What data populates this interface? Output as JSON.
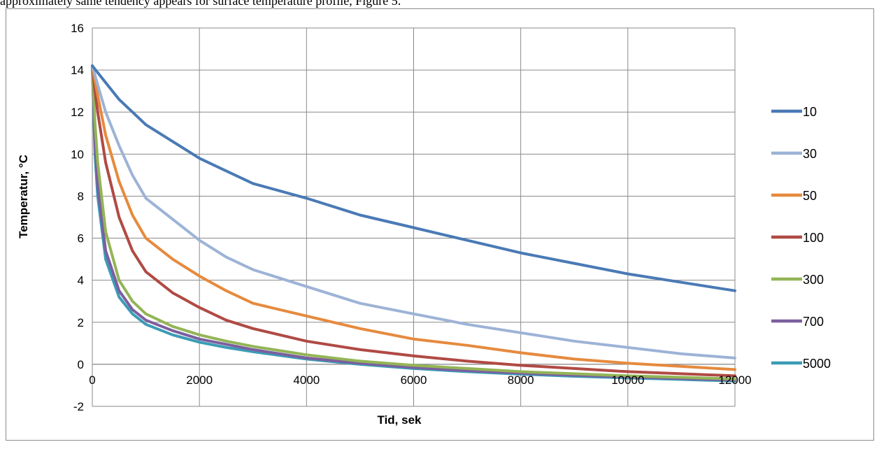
{
  "page": {
    "top_text": "approximately same tendency appears for surface temperature profile, Figure 5."
  },
  "chart_data": {
    "type": "line",
    "title": "",
    "xlabel": "Tid, sek",
    "ylabel": "Temperatur, °C",
    "xlim": [
      0,
      12000
    ],
    "ylim": [
      -2,
      16
    ],
    "xticks": [
      0,
      2000,
      4000,
      6000,
      8000,
      10000,
      12000
    ],
    "yticks": [
      -2,
      0,
      2,
      4,
      6,
      8,
      10,
      12,
      14,
      16
    ],
    "grid": true,
    "legend": "right",
    "series": [
      {
        "name": "10",
        "color": "#4a7ab5",
        "x": [
          0,
          250,
          500,
          750,
          1000,
          1500,
          2000,
          2500,
          3000,
          4000,
          5000,
          6000,
          7000,
          8000,
          9000,
          10000,
          11000,
          12000
        ],
        "y": [
          14.2,
          13.4,
          12.6,
          12.0,
          11.4,
          10.6,
          9.8,
          9.2,
          8.6,
          7.9,
          7.1,
          6.5,
          5.9,
          5.3,
          4.8,
          4.3,
          3.9,
          3.5
        ]
      },
      {
        "name": "30",
        "color": "#9db3d6",
        "x": [
          0,
          100,
          250,
          500,
          750,
          1000,
          1500,
          2000,
          2500,
          3000,
          4000,
          5000,
          6000,
          7000,
          8000,
          9000,
          10000,
          11000,
          12000
        ],
        "y": [
          14.2,
          13.3,
          12.0,
          10.4,
          9.0,
          7.9,
          6.9,
          5.9,
          5.1,
          4.5,
          3.7,
          2.9,
          2.4,
          1.9,
          1.5,
          1.1,
          0.8,
          0.5,
          0.3
        ]
      },
      {
        "name": "50",
        "color": "#e68a3e",
        "x": [
          0,
          100,
          250,
          500,
          750,
          1000,
          1500,
          2000,
          2500,
          3000,
          4000,
          5000,
          6000,
          7000,
          8000,
          9000,
          10000,
          11000,
          12000
        ],
        "y": [
          14.2,
          12.8,
          10.9,
          8.7,
          7.1,
          6.0,
          5.0,
          4.2,
          3.5,
          2.9,
          2.3,
          1.7,
          1.2,
          0.9,
          0.55,
          0.25,
          0.05,
          -0.1,
          -0.25
        ]
      },
      {
        "name": "100",
        "color": "#b04a44",
        "x": [
          0,
          50,
          100,
          250,
          500,
          750,
          1000,
          1500,
          2000,
          2500,
          3000,
          4000,
          5000,
          6000,
          7000,
          8000,
          9000,
          10000,
          11000,
          12000
        ],
        "y": [
          14.2,
          13.0,
          12.0,
          9.6,
          7.0,
          5.4,
          4.4,
          3.4,
          2.7,
          2.1,
          1.7,
          1.1,
          0.7,
          0.4,
          0.15,
          -0.05,
          -0.2,
          -0.35,
          -0.45,
          -0.55
        ]
      },
      {
        "name": "300",
        "color": "#93b556",
        "x": [
          0,
          50,
          100,
          250,
          500,
          750,
          1000,
          1500,
          2000,
          2500,
          3000,
          4000,
          5000,
          6000,
          7000,
          8000,
          9000,
          10000,
          11000,
          12000
        ],
        "y": [
          14.2,
          11.5,
          9.6,
          6.3,
          4.0,
          3.0,
          2.4,
          1.8,
          1.4,
          1.1,
          0.85,
          0.45,
          0.15,
          -0.05,
          -0.2,
          -0.35,
          -0.45,
          -0.55,
          -0.62,
          -0.7
        ]
      },
      {
        "name": "700",
        "color": "#7b5fa0",
        "x": [
          0,
          50,
          100,
          250,
          500,
          750,
          1000,
          1500,
          2000,
          2500,
          3000,
          4000,
          5000,
          6000,
          7000,
          8000,
          9000,
          10000,
          11000,
          12000
        ],
        "y": [
          14.2,
          10.5,
          8.5,
          5.4,
          3.5,
          2.6,
          2.1,
          1.6,
          1.2,
          0.95,
          0.7,
          0.3,
          0.05,
          -0.15,
          -0.3,
          -0.42,
          -0.52,
          -0.6,
          -0.68,
          -0.75
        ]
      },
      {
        "name": "5000",
        "color": "#3b9cb5",
        "x": [
          0,
          50,
          100,
          250,
          500,
          750,
          1000,
          1500,
          2000,
          2500,
          3000,
          4000,
          5000,
          6000,
          7000,
          8000,
          9000,
          10000,
          11000,
          12000
        ],
        "y": [
          14.2,
          10.0,
          8.0,
          5.0,
          3.2,
          2.4,
          1.9,
          1.4,
          1.05,
          0.8,
          0.6,
          0.25,
          0.0,
          -0.2,
          -0.35,
          -0.47,
          -0.57,
          -0.65,
          -0.72,
          -0.8
        ]
      }
    ]
  }
}
